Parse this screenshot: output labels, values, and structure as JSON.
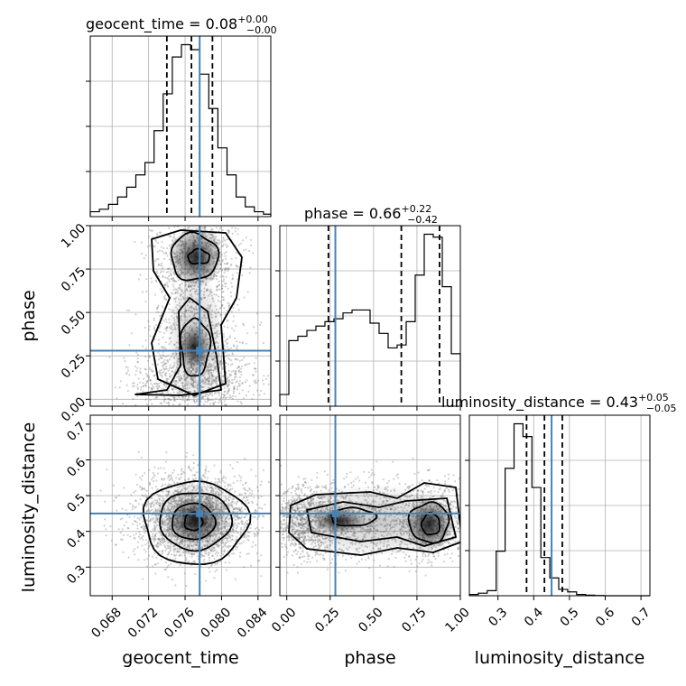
{
  "chart_data": {
    "type": "corner",
    "truth_color": "#4682b4",
    "hist_color": "#000000",
    "parameters": [
      {
        "name": "geocent_time",
        "label": "geocent_time",
        "title": {
          "main": "geocent_time = 0.08",
          "plus": "+0.00",
          "minus": "−0.00"
        },
        "range": [
          0.0656,
          0.0854
        ],
        "ticks": [
          0.068,
          0.072,
          0.076,
          0.08,
          0.084
        ],
        "tick_labels": [
          "0.068",
          "0.072",
          "0.076",
          "0.080",
          "0.084"
        ],
        "quantiles": [
          0.074,
          0.0767,
          0.079
        ],
        "truth": 0.0776,
        "hist": {
          "start": 0.0656,
          "step": 0.001,
          "values": [
            2,
            3,
            5,
            8,
            12,
            17,
            22,
            35,
            50,
            65,
            70,
            68,
            58,
            44,
            28,
            17,
            8,
            4,
            2,
            1
          ]
        }
      },
      {
        "name": "phase",
        "label": "phase",
        "title": {
          "main": "phase = 0.66",
          "plus": "+0.22",
          "minus": "−0.42"
        },
        "range": [
          -0.04,
          1.0
        ],
        "ticks": [
          0.0,
          0.25,
          0.5,
          0.75,
          1.0
        ],
        "tick_labels": [
          "0.00",
          "0.25",
          "0.50",
          "0.75",
          "1.00"
        ],
        "quantiles": [
          0.24,
          0.66,
          0.88
        ],
        "truth": 0.28,
        "hist": {
          "start": -0.04,
          "step": 0.052,
          "values": [
            8,
            45,
            48,
            52,
            55,
            58,
            60,
            64,
            66,
            66,
            57,
            50,
            40,
            42,
            58,
            90,
            118,
            116,
            82,
            36
          ]
        }
      },
      {
        "name": "luminosity_distance",
        "label": "luminosity_distance",
        "title": {
          "main": "luminosity_distance = 0.43",
          "plus": "+0.05",
          "minus": "−0.05"
        },
        "range": [
          0.22,
          0.725
        ],
        "ticks": [
          0.3,
          0.4,
          0.5,
          0.6,
          0.7
        ],
        "tick_labels": [
          "0.3",
          "0.4",
          "0.5",
          "0.6",
          "0.7"
        ],
        "quantiles": [
          0.38,
          0.43,
          0.48
        ],
        "truth": 0.45,
        "hist": {
          "start": 0.22,
          "step": 0.025,
          "values": [
            1,
            2,
            4,
            35,
            100,
            135,
            125,
            85,
            30,
            14,
            5,
            3,
            1,
            0.5,
            0.2,
            0,
            0,
            0,
            0,
            0
          ]
        }
      }
    ],
    "pairs": [
      {
        "x": "geocent_time",
        "y": "phase"
      },
      {
        "x": "geocent_time",
        "y": "luminosity_distance"
      },
      {
        "x": "phase",
        "y": "luminosity_distance"
      }
    ],
    "grid": true
  }
}
